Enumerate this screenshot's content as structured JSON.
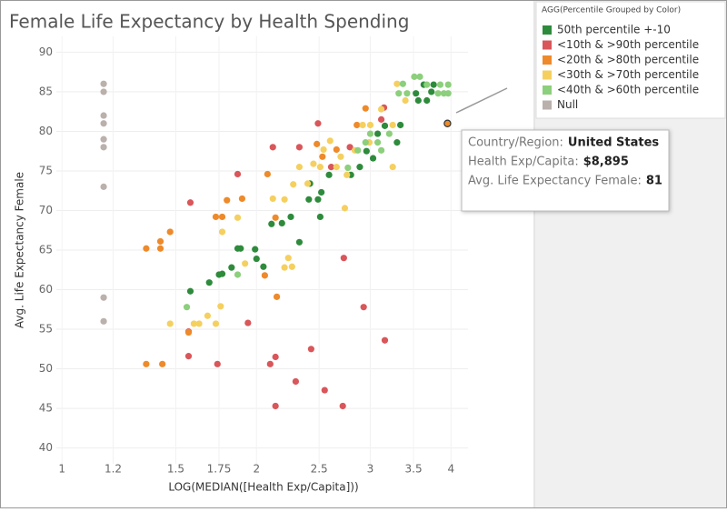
{
  "chart_data": {
    "type": "scatter",
    "title": "Female Life Expectancy by Health Spending",
    "x_label": "LOG(MEDIAN([Health Exp/Capita]))",
    "y_label": "Avg. Life Expectancy Female",
    "xscale": "log",
    "xlim": [
      0.98,
      4.25
    ],
    "ylim": [
      38,
      92
    ],
    "xticks": [
      1,
      1.2,
      1.5,
      1.75,
      2,
      2.5,
      3,
      3.5,
      4
    ],
    "yticks": [
      40,
      45,
      50,
      55,
      60,
      65,
      70,
      75,
      80,
      85,
      90
    ],
    "grid": true,
    "legend_title": "AGG(Percentile Grouped by Color)",
    "series": [
      {
        "name": "50th percentile +-10",
        "color": "#2e8b3c",
        "x": [
          1.58,
          1.69,
          1.75,
          1.77,
          1.83,
          1.87,
          1.89,
          1.99,
          2.0,
          2.05,
          2.11,
          2.19,
          2.26,
          2.33,
          2.41,
          2.42,
          2.49,
          2.51,
          2.52,
          2.59,
          2.8,
          2.89,
          2.96,
          3.03,
          3.08,
          3.16,
          3.3,
          3.34,
          3.53,
          3.63,
          3.73,
          3.56,
          3.67,
          3.76
        ],
        "values": [
          59.8,
          60.9,
          61.9,
          62,
          62.8,
          65.2,
          65.2,
          65.1,
          63.9,
          62.9,
          68.3,
          68.4,
          69.2,
          66,
          71.4,
          73.4,
          71.4,
          69.2,
          72.3,
          74.5,
          74.5,
          75.5,
          77.5,
          76.6,
          79.7,
          80.7,
          78.6,
          80.8,
          84.8,
          85.9,
          85,
          83.9,
          83.9,
          85.9
        ]
      },
      {
        "name": "<10th & >90th percentile",
        "color": "#d9565a",
        "x": [
          1.58,
          1.87,
          2.12,
          2.33,
          2.49,
          2.79,
          2.61,
          3.15,
          3.12,
          2.73,
          1.57,
          1.94,
          1.74,
          1.57,
          2.1,
          2.14,
          2.43,
          2.3,
          2.55,
          2.72,
          2.14,
          2.93,
          3.16
        ],
        "values": [
          71,
          74.6,
          78,
          78,
          81,
          78,
          75.5,
          83,
          81.5,
          64,
          54.7,
          55.8,
          50.6,
          51.6,
          50.6,
          51.5,
          52.5,
          48.4,
          47.3,
          45.3,
          45.3,
          57.8,
          53.6
        ]
      },
      {
        "name": "<20th & >80th percentile",
        "color": "#ee8a2a",
        "x": [
          1.35,
          1.42,
          1.42,
          1.47,
          1.35,
          1.43,
          1.73,
          1.77,
          1.8,
          1.9,
          1.57,
          2.08,
          2.14,
          2.15,
          2.06,
          2.48,
          2.53,
          2.66,
          2.95,
          2.86,
          3.95
        ],
        "values": [
          65.2,
          66.1,
          65.2,
          67.3,
          50.6,
          50.6,
          69.2,
          69.2,
          71.3,
          71.5,
          54.6,
          74.6,
          69.1,
          59.1,
          61.8,
          78.4,
          76.8,
          77.7,
          82.9,
          80.8,
          81
        ]
      },
      {
        "name": "<30th & >70th percentile",
        "color": "#f5d05f",
        "x": [
          1.47,
          1.6,
          1.63,
          1.68,
          1.73,
          1.76,
          1.87,
          1.77,
          1.92,
          2.24,
          2.21,
          2.27,
          2.12,
          2.21,
          2.28,
          2.33,
          2.4,
          2.45,
          2.51,
          2.54,
          2.6,
          2.66,
          2.74,
          2.76,
          2.84,
          2.92,
          3.0,
          3.12,
          3.25,
          3.3,
          3.4,
          3.25,
          2.7,
          2.99
        ],
        "values": [
          55.7,
          55.7,
          55.7,
          56.7,
          55.7,
          57.9,
          69.1,
          67.3,
          63.3,
          64,
          62.8,
          62.9,
          71.5,
          71.4,
          73.3,
          75.5,
          73.4,
          75.9,
          75.5,
          77.7,
          78.8,
          75.5,
          70.3,
          74.5,
          77.6,
          80.8,
          80.8,
          82.8,
          75.5,
          86,
          83.9,
          80.8,
          76.8,
          78.6
        ]
      },
      {
        "name": "<40th & >60th percentile",
        "color": "#8ccf7c",
        "x": [
          1.56,
          1.87,
          3.42,
          3.51,
          3.58,
          3.67,
          3.85,
          3.96,
          3.96,
          3.82,
          3.9,
          3.0,
          3.12,
          2.95,
          2.87,
          2.77,
          3.37,
          3.08,
          3.21,
          3.32
        ],
        "values": [
          57.8,
          61.9,
          84.8,
          86.9,
          86.9,
          85.9,
          85.9,
          85.9,
          84.8,
          84.8,
          84.8,
          79.7,
          77.6,
          78.6,
          77.6,
          75.4,
          86,
          78.6,
          79.7,
          84.8
        ]
      },
      {
        "name": "Null",
        "color": "#bab0ac",
        "x": [
          1.16,
          1.16,
          1.16,
          1.16,
          1.16,
          1.16,
          1.16,
          1.16,
          1.16
        ],
        "values": [
          86,
          85,
          82,
          81,
          79,
          78,
          73,
          59,
          56
        ]
      }
    ],
    "tooltip": [
      {
        "label": "Country/Region:",
        "value": "United States"
      },
      {
        "label": "Health Exp/Capita:",
        "value": "$8,895"
      },
      {
        "label": "Avg. Life Expectancy Female:",
        "value": "81"
      }
    ]
  }
}
